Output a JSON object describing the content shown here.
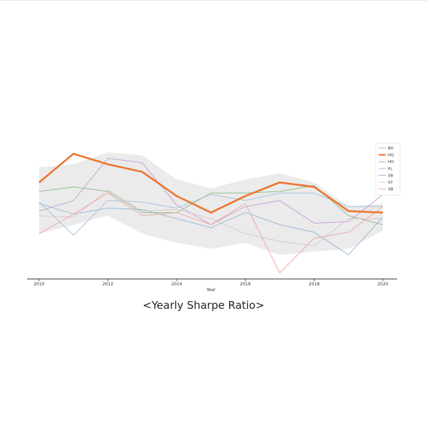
{
  "caption": "<Yearly Sharpe Ratio>",
  "colors": {
    "band": "#ebebeb",
    "axis": "#333333"
  },
  "chart_data": {
    "type": "line",
    "xlabel": "Year",
    "ylabel": "",
    "x": [
      2010,
      2011,
      2012,
      2013,
      2014,
      2015,
      2016,
      2017,
      2018,
      2019,
      2020
    ],
    "xlim": [
      2010,
      2020
    ],
    "ylim": [
      0,
      100
    ],
    "x_ticks": [
      "2010",
      "2012",
      "2014",
      "2016",
      "2018",
      "2020"
    ],
    "y_ticks_shown": false,
    "grid": false,
    "legend_position": "right",
    "band": {
      "upper": [
        74,
        76,
        84,
        82,
        66,
        60,
        66,
        70,
        64,
        48,
        50
      ],
      "lower": [
        30,
        36,
        42,
        30,
        24,
        20,
        24,
        16,
        18,
        20,
        32
      ]
    },
    "series": [
      {
        "name": "BO",
        "color": "#9ab8d8",
        "width": 1,
        "values": [
          50,
          43,
          47,
          46,
          40,
          34,
          44,
          36,
          31,
          16,
          41
        ]
      },
      {
        "name": "HQ",
        "color": "#ec7631",
        "width": 2.6,
        "values": [
          64,
          83,
          76,
          71,
          55,
          44,
          55,
          64,
          61,
          45,
          44
        ]
      },
      {
        "name": "HO",
        "color": "#8fbf8c",
        "width": 1,
        "values": [
          58,
          61,
          58,
          44,
          44,
          57,
          57,
          58,
          62,
          42,
          36
        ]
      },
      {
        "name": "PL",
        "color": "#a7c3e0",
        "width": 1,
        "values": [
          51,
          29,
          52,
          51,
          47,
          56,
          52,
          57,
          57,
          48,
          48
        ]
      },
      {
        "name": "SB",
        "color": "#c4a3d6",
        "width": 1,
        "values": [
          45,
          52,
          80,
          77,
          49,
          36,
          48,
          52,
          37,
          38,
          56
        ]
      },
      {
        "name": "SY",
        "color": "#d9c8cf",
        "width": 1,
        "values": [
          42,
          41,
          59,
          45,
          46,
          40,
          30,
          25,
          22,
          40,
          40
        ]
      },
      {
        "name": "XB",
        "color": "#f0a7a7",
        "width": 1,
        "values": [
          30,
          43,
          57,
          42,
          44,
          36,
          50,
          4,
          27,
          31,
          48
        ]
      }
    ]
  }
}
